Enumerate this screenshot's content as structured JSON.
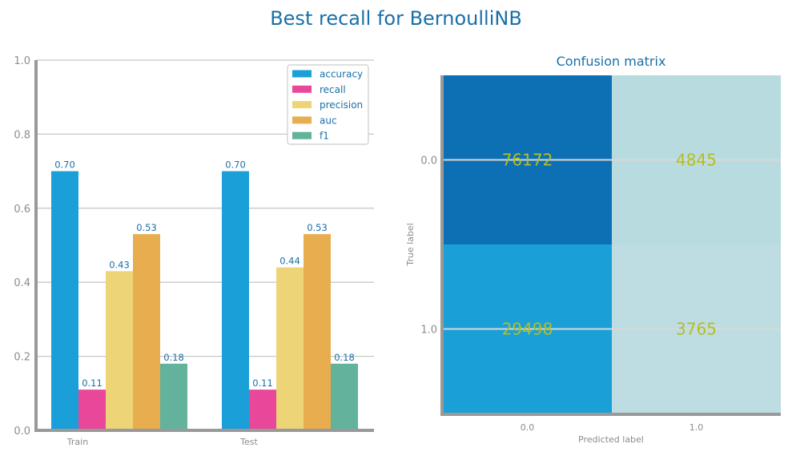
{
  "figure": {
    "suptitle": "Best recall for BernoulliNB"
  },
  "colors": {
    "accuracy": "#1a9fd9",
    "recall": "#e8479a",
    "precision": "#edd577",
    "auc": "#e8ad4e",
    "f1": "#63b29c",
    "axis": "#999999",
    "grid": "#c8c8c8",
    "tick_text": "#8c8c8c",
    "label_text": "#1a6fa8",
    "cm_text": "#b5bf1f"
  },
  "chart_data": [
    {
      "type": "bar",
      "title": "",
      "xlabel": "",
      "ylabel": "",
      "categories": [
        "Train",
        "Test"
      ],
      "ylim": [
        0,
        1.0
      ],
      "yticks": [
        "0.0",
        "0.2",
        "0.4",
        "0.6",
        "0.8",
        "1.0"
      ],
      "grid": true,
      "legend": "top-right",
      "series": [
        {
          "name": "accuracy",
          "values": [
            0.7,
            0.7
          ],
          "labels": [
            "0.70",
            "0.70"
          ]
        },
        {
          "name": "recall",
          "values": [
            0.11,
            0.11
          ],
          "labels": [
            "0.11",
            "0.11"
          ]
        },
        {
          "name": "precision",
          "values": [
            0.43,
            0.44
          ],
          "labels": [
            "0.43",
            "0.44"
          ]
        },
        {
          "name": "auc",
          "values": [
            0.53,
            0.53
          ],
          "labels": [
            "0.53",
            "0.53"
          ]
        },
        {
          "name": "f1",
          "values": [
            0.18,
            0.18
          ],
          "labels": [
            "0.18",
            "0.18"
          ]
        }
      ]
    },
    {
      "type": "heatmap",
      "title": "Confusion matrix",
      "xlabel": "Predicted label",
      "ylabel": "True label",
      "xticks": [
        "0.0",
        "1.0"
      ],
      "yticks": [
        "0.0",
        "1.0"
      ],
      "values": [
        [
          76172,
          4845
        ],
        [
          29498,
          3765
        ]
      ],
      "cell_colors": [
        [
          "#0d70b4",
          "#b8dbe0"
        ],
        [
          "#1a9fd6",
          "#bddde2"
        ]
      ]
    }
  ]
}
